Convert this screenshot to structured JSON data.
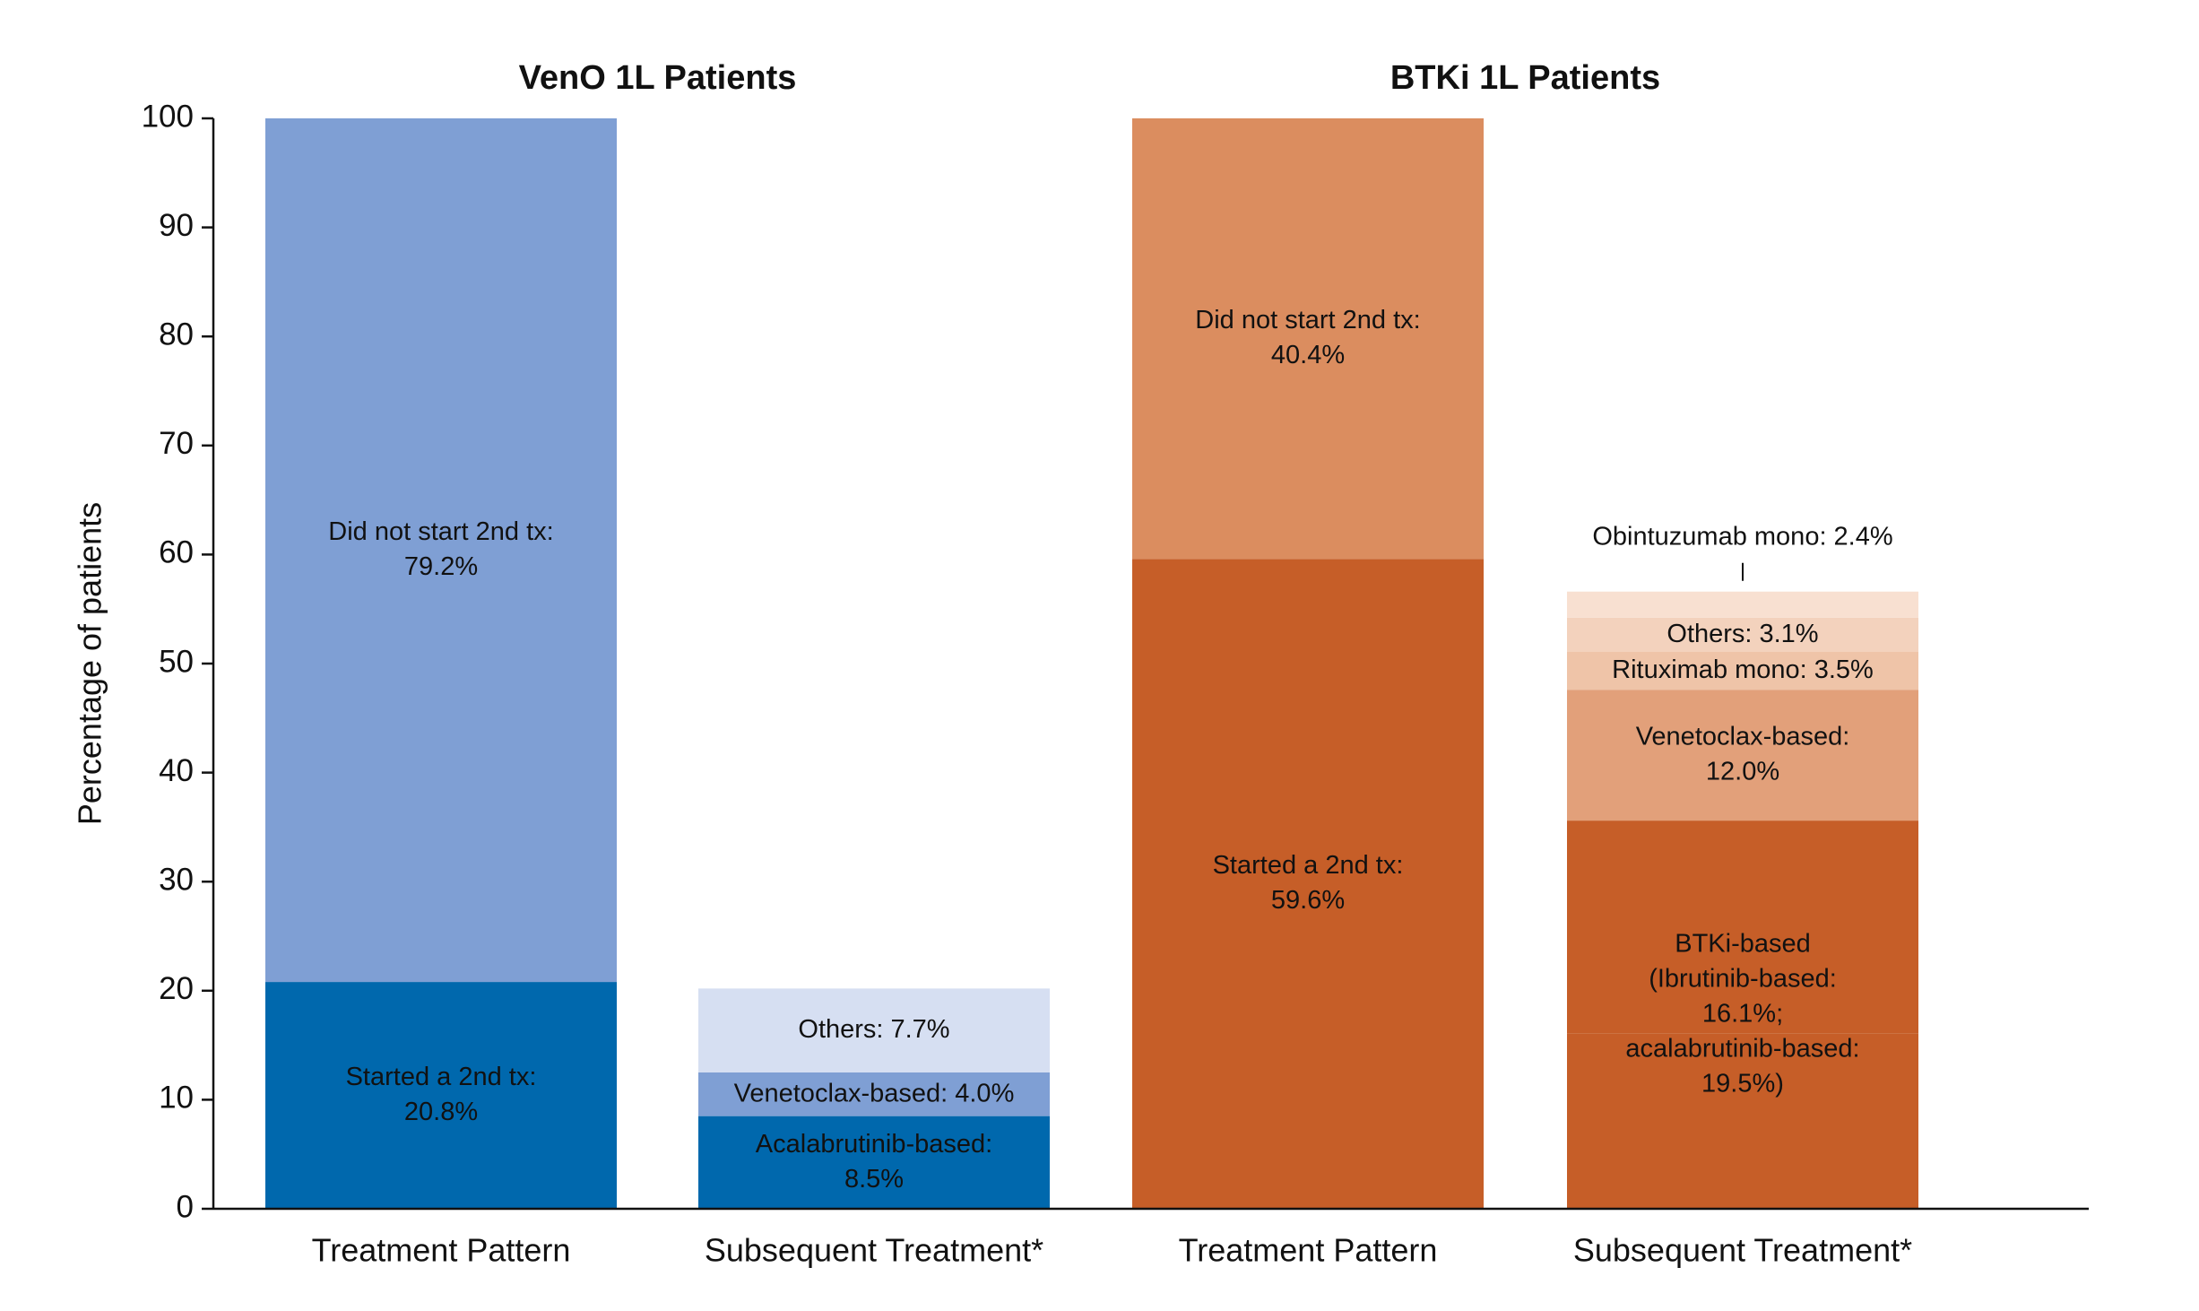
{
  "chart_data": {
    "type": "stacked_bar",
    "group_titles": [
      "VenO 1L Patients",
      "BTKi 1L Patients"
    ],
    "y_label": "Percentage of patients",
    "ylim": [
      0,
      100
    ],
    "yticks": [
      0,
      10,
      20,
      30,
      40,
      50,
      60,
      70,
      80,
      90,
      100
    ],
    "bars": [
      {
        "category": "Treatment Pattern",
        "segments": [
          {
            "name": "Started a 2nd tx:",
            "value": 20.8,
            "value_label": "20.8%",
            "color": "#0068ad"
          },
          {
            "name": "Did not start 2nd tx:",
            "value": 79.2,
            "value_label": "79.2%",
            "color": "#7f9fd4"
          }
        ]
      },
      {
        "category": "Subsequent Treatment*",
        "segments": [
          {
            "name": "Acalabrutinib-based:",
            "value": 8.5,
            "value_label": "8.5%",
            "color": "#0068ad"
          },
          {
            "name": "Venetoclax-based:",
            "value": 4.0,
            "value_label": "4.0%",
            "color": "#7f9fd4"
          },
          {
            "name": "Others:",
            "value": 7.7,
            "value_label": "7.7%",
            "color": "#d6dff2"
          }
        ]
      },
      {
        "category": "Treatment Pattern",
        "segments": [
          {
            "name": "Started a 2nd tx:",
            "value": 59.6,
            "value_label": "59.6%",
            "color": "#c65e28"
          },
          {
            "name": "Did not start 2nd tx:",
            "value": 40.4,
            "value_label": "40.4%",
            "color": "#db8d5f"
          }
        ]
      },
      {
        "category": "Subsequent Treatment*",
        "segments": [
          {
            "name": "BTKi-based",
            "color": "#c65e28",
            "parts": [
              {
                "name": "(Ibrutinib-based:",
                "value": 16.1,
                "value_label": "16.1%;"
              },
              {
                "name": "acalabrutinib-based:",
                "value": 19.5,
                "value_label": "19.5%)"
              }
            ]
          },
          {
            "name": "Venetoclax-based:",
            "value": 12.0,
            "value_label": "12.0%",
            "color": "#e2a07a"
          },
          {
            "name": "Rituximab mono:",
            "value": 3.5,
            "value_label": "3.5%",
            "color": "#efc4a8"
          },
          {
            "name": "Others:",
            "value": 3.1,
            "value_label": "3.1%",
            "color": "#f3d2bd"
          },
          {
            "name": "Obintuzumab mono:",
            "value": 2.4,
            "value_label": "2.4%",
            "color": "#f8e0d1"
          }
        ]
      }
    ]
  }
}
